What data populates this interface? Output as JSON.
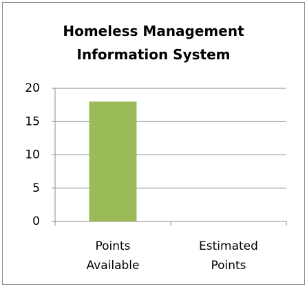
{
  "chart_data": {
    "type": "bar",
    "title": "Homeless Management Information System",
    "categories": [
      "Points Available",
      "Estimated Points"
    ],
    "values": [
      18,
      0
    ],
    "color": "#9bbb59",
    "ylim": [
      0,
      20
    ],
    "yticks": [
      0,
      5,
      10,
      15,
      20
    ],
    "grid": true
  }
}
